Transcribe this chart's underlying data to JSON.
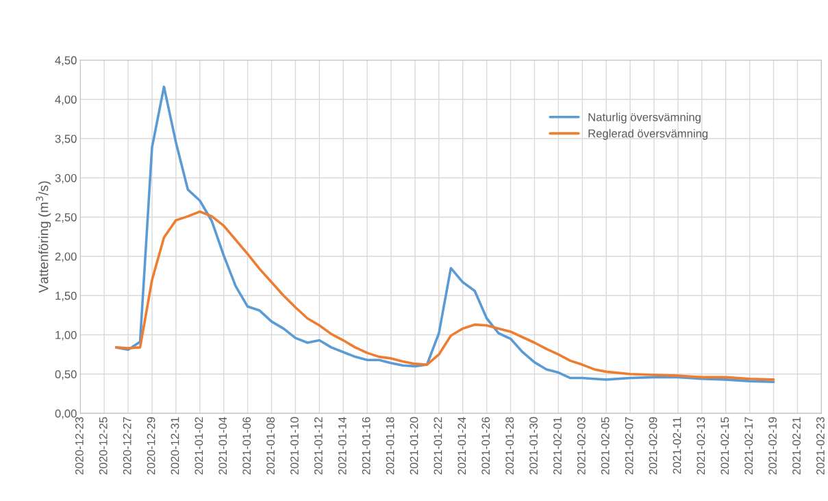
{
  "chart_data": {
    "type": "line",
    "ylabel": "Vattenföring (m$^{3}$/s)",
    "x": [
      "2020-12-26",
      "2020-12-27",
      "2020-12-28",
      "2020-12-29",
      "2020-12-30",
      "2020-12-31",
      "2021-01-01",
      "2021-01-02",
      "2021-01-03",
      "2021-01-04",
      "2021-01-05",
      "2021-01-06",
      "2021-01-07",
      "2021-01-08",
      "2021-01-09",
      "2021-01-10",
      "2021-01-11",
      "2021-01-12",
      "2021-01-13",
      "2021-01-14",
      "2021-01-15",
      "2021-01-16",
      "2021-01-17",
      "2021-01-18",
      "2021-01-19",
      "2021-01-20",
      "2021-01-21",
      "2021-01-22",
      "2021-01-23",
      "2021-01-24",
      "2021-01-25",
      "2021-01-26",
      "2021-01-27",
      "2021-01-28",
      "2021-01-29",
      "2021-01-30",
      "2021-01-31",
      "2021-02-01",
      "2021-02-02",
      "2021-02-03",
      "2021-02-04",
      "2021-02-05",
      "2021-02-07",
      "2021-02-09",
      "2021-02-11",
      "2021-02-13",
      "2021-02-15",
      "2021-02-17",
      "2021-02-19"
    ],
    "series": [
      {
        "name": "Naturlig översvämning",
        "color": "#5b9bd5",
        "values": [
          0.84,
          0.81,
          0.91,
          3.39,
          4.16,
          3.45,
          2.85,
          2.71,
          2.45,
          2.01,
          1.62,
          1.36,
          1.31,
          1.17,
          1.08,
          0.96,
          0.9,
          0.93,
          0.84,
          0.78,
          0.72,
          0.68,
          0.68,
          0.64,
          0.61,
          0.6,
          0.62,
          1.02,
          1.85,
          1.67,
          1.56,
          1.21,
          1.02,
          0.95,
          0.78,
          0.65,
          0.56,
          0.52,
          0.45,
          0.45,
          0.44,
          0.43,
          0.45,
          0.46,
          0.46,
          0.44,
          0.43,
          0.41,
          0.4
        ]
      },
      {
        "name": "Reglerad översvämning",
        "color": "#ed7d31",
        "values": [
          0.84,
          0.83,
          0.84,
          1.7,
          2.24,
          2.46,
          2.51,
          2.57,
          2.51,
          2.39,
          2.21,
          2.03,
          1.84,
          1.67,
          1.5,
          1.35,
          1.21,
          1.12,
          1.01,
          0.93,
          0.84,
          0.77,
          0.72,
          0.7,
          0.66,
          0.63,
          0.62,
          0.75,
          0.99,
          1.08,
          1.13,
          1.12,
          1.08,
          1.04,
          0.97,
          0.9,
          0.82,
          0.75,
          0.67,
          0.62,
          0.56,
          0.53,
          0.5,
          0.49,
          0.48,
          0.46,
          0.46,
          0.44,
          0.43
        ]
      }
    ],
    "xlim": [
      "2020-12-23",
      "2021-02-23"
    ],
    "xticks": [
      "2020-12-23",
      "2020-12-25",
      "2020-12-27",
      "2020-12-29",
      "2020-12-31",
      "2021-01-02",
      "2021-01-04",
      "2021-01-06",
      "2021-01-08",
      "2021-01-10",
      "2021-01-12",
      "2021-01-14",
      "2021-01-16",
      "2021-01-18",
      "2021-01-20",
      "2021-01-22",
      "2021-01-24",
      "2021-01-26",
      "2021-01-28",
      "2021-01-30",
      "2021-02-01",
      "2021-02-03",
      "2021-02-05",
      "2021-02-07",
      "2021-02-09",
      "2021-02-11",
      "2021-02-13",
      "2021-02-15",
      "2021-02-17",
      "2021-02-19",
      "2021-02-21",
      "2021-02-23"
    ],
    "ylim": [
      0,
      4.5
    ],
    "yticks": [
      {
        "value": 0,
        "label": "0,00"
      },
      {
        "value": 0.5,
        "label": "0,50"
      },
      {
        "value": 1,
        "label": "1,00"
      },
      {
        "value": 1.5,
        "label": "1,50"
      },
      {
        "value": 2,
        "label": "2,00"
      },
      {
        "value": 2.5,
        "label": "2,50"
      },
      {
        "value": 3,
        "label": "3,00"
      },
      {
        "value": 3.5,
        "label": "3,50"
      },
      {
        "value": 4,
        "label": "4,00"
      },
      {
        "value": 4.5,
        "label": "4,50"
      }
    ],
    "grid": true,
    "legend": "top right",
    "line_style": "solid",
    "marker": "none"
  }
}
